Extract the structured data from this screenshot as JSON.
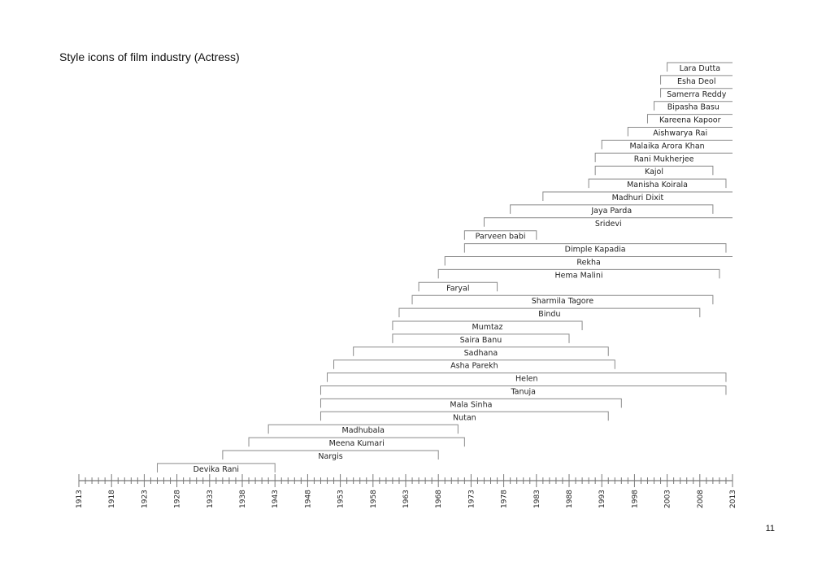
{
  "page": {
    "title": "Style icons of film industry (Actress)",
    "number": "11"
  },
  "chart_data": {
    "type": "timeline",
    "title": "Style icons of film industry (Actress)",
    "xlim": [
      1913,
      2013
    ],
    "tick_labels": [
      1913,
      1918,
      1923,
      1928,
      1933,
      1938,
      1943,
      1948,
      1953,
      1958,
      1963,
      1968,
      1973,
      1978,
      1983,
      1988,
      1993,
      1998,
      2003,
      2008,
      2013
    ],
    "minor_tick_step": 1,
    "colors": {
      "bars": "#8a8a8a",
      "axis": "#777777",
      "text": "#222222"
    },
    "bars": [
      {
        "name": "Lara Dutta",
        "start": 2003,
        "end": 2013
      },
      {
        "name": "Esha Deol",
        "start": 2002,
        "end": 2013
      },
      {
        "name": "Samerra Reddy",
        "start": 2002,
        "end": 2013
      },
      {
        "name": "Bipasha Basu",
        "start": 2001,
        "end": 2013
      },
      {
        "name": "Kareena Kapoor",
        "start": 2000,
        "end": 2013
      },
      {
        "name": "Aishwarya Rai",
        "start": 1997,
        "end": 2013
      },
      {
        "name": "Malaika Arora Khan",
        "start": 1993,
        "end": 2013
      },
      {
        "name": "Rani Mukherjee",
        "start": 1992,
        "end": 2013
      },
      {
        "name": "Kajol",
        "start": 1992,
        "end": 2010
      },
      {
        "name": "Manisha Koirala",
        "start": 1991,
        "end": 2012
      },
      {
        "name": "Madhuri Dixit",
        "start": 1984,
        "end": 2013
      },
      {
        "name": "Jaya Parda",
        "start": 1979,
        "end": 2010
      },
      {
        "name": "Sridevi",
        "start": 1975,
        "end": 2013
      },
      {
        "name": "Parveen babi",
        "start": 1972,
        "end": 1983
      },
      {
        "name": "Dimple Kapadia",
        "start": 1972,
        "end": 2012
      },
      {
        "name": "Rekha",
        "start": 1969,
        "end": 2013
      },
      {
        "name": "Hema Malini",
        "start": 1968,
        "end": 2011
      },
      {
        "name": "Faryal",
        "start": 1965,
        "end": 1977
      },
      {
        "name": "Sharmila Tagore",
        "start": 1964,
        "end": 2010
      },
      {
        "name": "Bindu",
        "start": 1962,
        "end": 2008
      },
      {
        "name": "Mumtaz",
        "start": 1961,
        "end": 1990
      },
      {
        "name": "Saira Banu",
        "start": 1961,
        "end": 1988
      },
      {
        "name": "Sadhana",
        "start": 1955,
        "end": 1994
      },
      {
        "name": "Asha Parekh",
        "start": 1952,
        "end": 1995
      },
      {
        "name": "Helen",
        "start": 1951,
        "end": 2012
      },
      {
        "name": "Tanuja",
        "start": 1950,
        "end": 2012
      },
      {
        "name": "Mala Sinha",
        "start": 1950,
        "end": 1996
      },
      {
        "name": "Nutan",
        "start": 1950,
        "end": 1994
      },
      {
        "name": "Madhubala",
        "start": 1942,
        "end": 1971
      },
      {
        "name": "Meena Kumari",
        "start": 1939,
        "end": 1972
      },
      {
        "name": "Nargis",
        "start": 1935,
        "end": 1968
      },
      {
        "name": "Devika Rani",
        "start": 1925,
        "end": 1943
      }
    ]
  }
}
